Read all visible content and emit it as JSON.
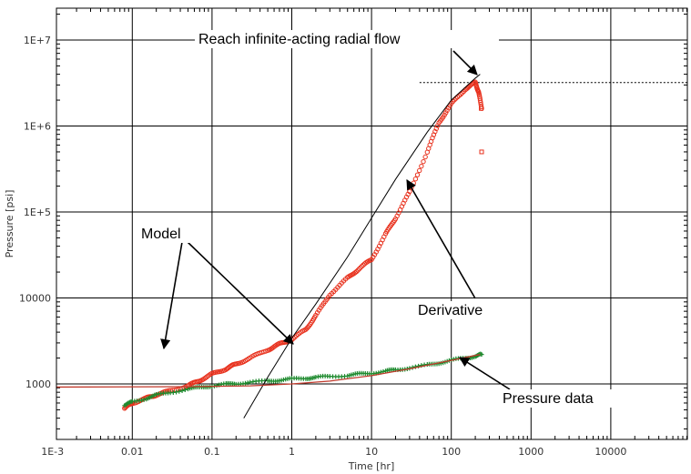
{
  "chart_data": {
    "type": "scatter",
    "title": "",
    "xlabel": "Time [hr]",
    "ylabel": "Pressure [psi]",
    "xscale": "log",
    "yscale": "log",
    "xlim": [
      0.001,
      1000000
    ],
    "ylim": [
      400,
      20000000
    ],
    "grid": true,
    "x_ticks": [
      {
        "value": 0.001,
        "label": "1E-3"
      },
      {
        "value": 0.01,
        "label": "0.01"
      },
      {
        "value": 0.1,
        "label": "0.1"
      },
      {
        "value": 1,
        "label": "1"
      },
      {
        "value": 10,
        "label": "10"
      },
      {
        "value": 100,
        "label": "100"
      },
      {
        "value": 1000,
        "label": "1000"
      },
      {
        "value": 10000,
        "label": "10000"
      }
    ],
    "y_ticks": [
      {
        "value": 1000,
        "label": "1000"
      },
      {
        "value": 10000,
        "label": "10000"
      },
      {
        "value": 100000,
        "label": "1E+5"
      },
      {
        "value": 1000000,
        "label": "1E+6"
      },
      {
        "value": 10000000,
        "label": "1E+7"
      }
    ],
    "series": [
      {
        "role": "derivative",
        "color": "#e8321e",
        "marker": "circle",
        "x": [
          0.008,
          0.01,
          0.015,
          0.02,
          0.03,
          0.05,
          0.07,
          0.1,
          0.15,
          0.2,
          0.3,
          0.5,
          0.7,
          1,
          1.5,
          2,
          3,
          5,
          7,
          10,
          15,
          20,
          30,
          50,
          70,
          100,
          150,
          200,
          220,
          240
        ],
        "y": [
          520,
          600,
          680,
          750,
          830,
          950,
          1100,
          1300,
          1500,
          1700,
          2000,
          2500,
          2900,
          3300,
          4300,
          6200,
          11000,
          17000,
          22000,
          28000,
          55000,
          85000,
          170000,
          500000,
          1100000,
          1800000,
          2700000,
          3200000,
          2500000,
          1600000
        ]
      },
      {
        "role": "pressure",
        "color": "#1e8a2e",
        "marker": "plus",
        "x": [
          0.008,
          0.01,
          0.015,
          0.02,
          0.03,
          0.05,
          0.07,
          0.1,
          0.15,
          0.2,
          0.3,
          0.5,
          0.7,
          1,
          1.5,
          2,
          3,
          5,
          7,
          10,
          15,
          20,
          30,
          50,
          70,
          100,
          150,
          200,
          240
        ],
        "y": [
          560,
          620,
          680,
          740,
          800,
          870,
          910,
          950,
          990,
          1010,
          1040,
          1080,
          1110,
          1140,
          1170,
          1190,
          1220,
          1260,
          1300,
          1340,
          1400,
          1460,
          1540,
          1650,
          1760,
          1880,
          2000,
          2100,
          2200
        ]
      },
      {
        "role": "model-derivative",
        "color": "#000000",
        "marker": "line",
        "x": [
          0.25,
          0.5,
          1,
          2,
          5,
          10,
          20,
          50,
          100,
          200,
          230
        ],
        "y": [
          400,
          1200,
          3400,
          8500,
          30000,
          85000,
          240000,
          850000,
          2000000,
          3600000,
          4000000
        ]
      },
      {
        "role": "model-pressure",
        "color": "#c0392b",
        "marker": "line",
        "x": [
          0.001,
          0.05,
          0.3,
          1,
          3,
          10,
          30,
          100,
          230
        ],
        "y": [
          920,
          930,
          950,
          1000,
          1080,
          1250,
          1500,
          1880,
          2200
        ]
      }
    ],
    "reference_line": {
      "y": 3200000,
      "x_from": 40,
      "x_to": 1000000,
      "style": "dotted"
    },
    "annotations": [
      {
        "text": "Reach infinite-acting radial flow"
      },
      {
        "text": "Model"
      },
      {
        "text": "Derivative"
      },
      {
        "text": "Pressure data"
      }
    ]
  }
}
